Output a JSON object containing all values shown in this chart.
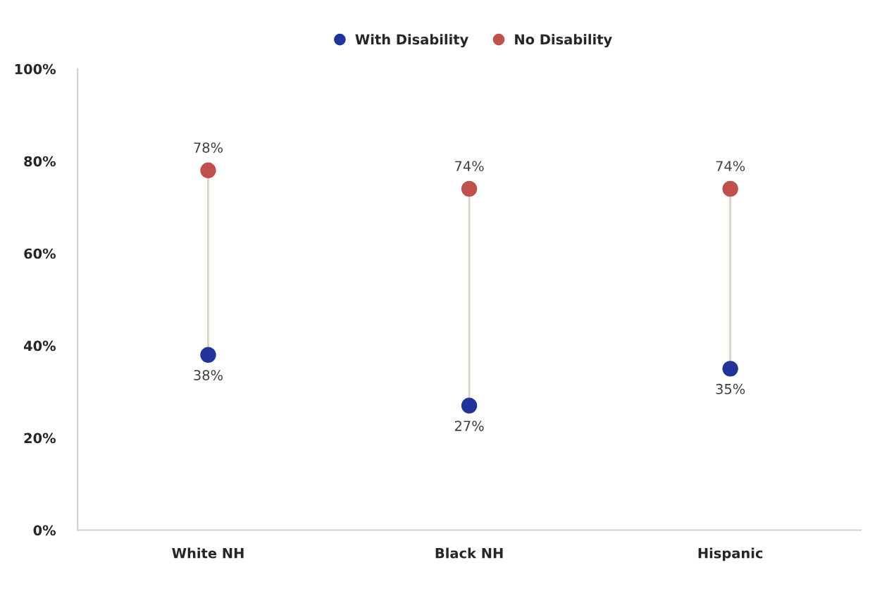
{
  "chart_data": {
    "type": "scatter",
    "categories": [
      "White NH",
      "Black NH",
      "Hispanic"
    ],
    "series": [
      {
        "name": "With Disability",
        "color": "#22349b",
        "values": [
          38,
          27,
          35
        ],
        "value_labels": [
          "38%",
          "27%",
          "35%"
        ]
      },
      {
        "name": "No Disability",
        "color": "#c0504d",
        "values": [
          78,
          74,
          74
        ],
        "value_labels": [
          "78%",
          "74%",
          "74%"
        ]
      }
    ],
    "ylim": [
      0,
      100
    ],
    "yticks": [
      {
        "value": 0,
        "label": "0%"
      },
      {
        "value": 20,
        "label": "20%"
      },
      {
        "value": 40,
        "label": "40%"
      },
      {
        "value": 60,
        "label": "60%"
      },
      {
        "value": 80,
        "label": "80%"
      },
      {
        "value": 100,
        "label": "100%"
      }
    ],
    "grid": false,
    "legend": "top",
    "marker": "circle"
  }
}
